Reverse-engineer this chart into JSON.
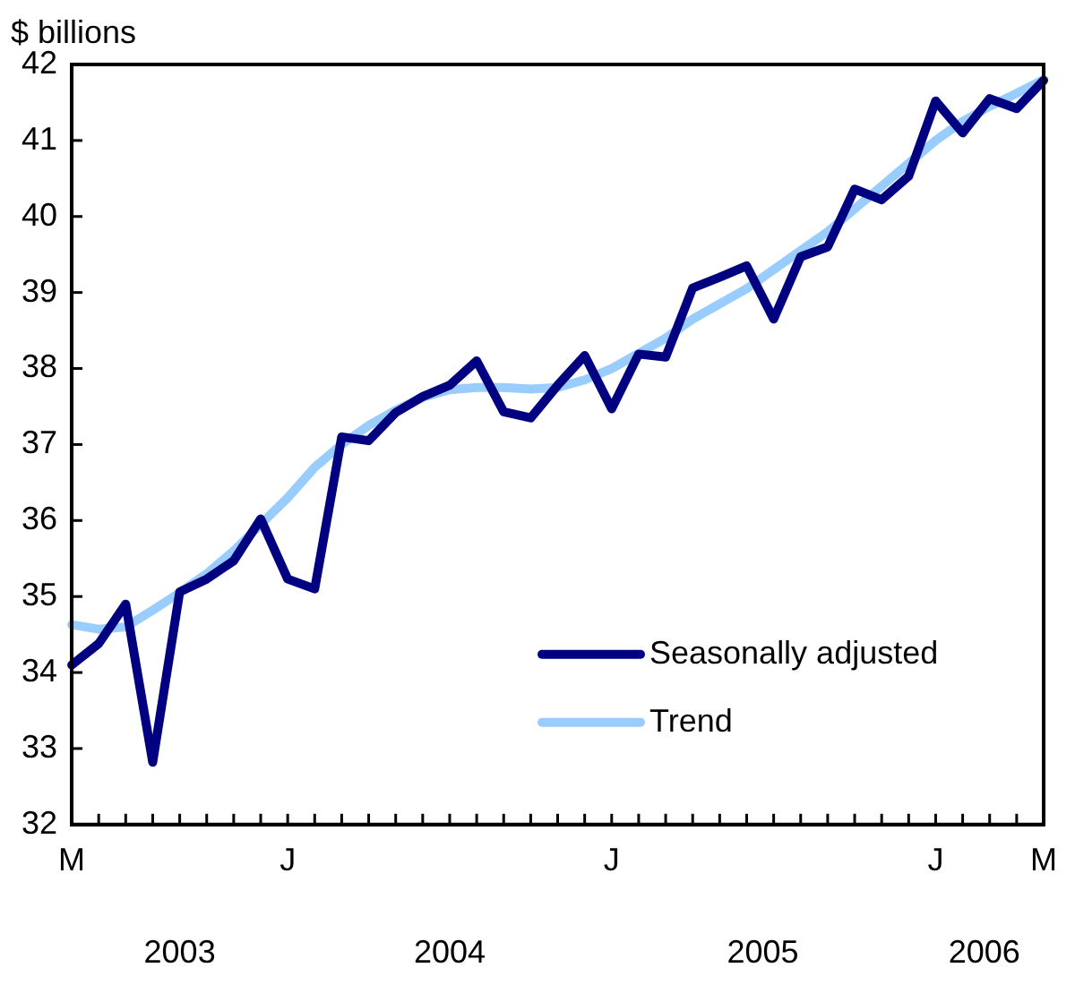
{
  "chart_data": {
    "type": "line",
    "ylabel": "$ billions",
    "categories": [
      "M",
      null,
      null,
      null,
      null,
      null,
      null,
      null,
      "J",
      null,
      null,
      null,
      null,
      null,
      null,
      null,
      null,
      null,
      null,
      null,
      "J",
      null,
      null,
      null,
      null,
      null,
      null,
      null,
      null,
      null,
      null,
      null,
      "J",
      null,
      null,
      null,
      "M"
    ],
    "series": [
      {
        "name": "Seasonally adjusted",
        "color": "#000080",
        "values": [
          34.1,
          34.38,
          34.9,
          32.82,
          35.06,
          35.23,
          35.47,
          36.02,
          35.23,
          35.1,
          37.1,
          37.05,
          37.42,
          37.63,
          37.78,
          38.1,
          37.43,
          37.35,
          37.78,
          38.17,
          37.47,
          38.19,
          38.15,
          39.06,
          39.2,
          39.35,
          38.65,
          39.47,
          39.6,
          40.36,
          40.22,
          40.53,
          41.52,
          41.1,
          41.55,
          41.42,
          41.79
        ]
      },
      {
        "name": "Trend",
        "color": "#99ccff",
        "values": [
          34.63,
          34.57,
          34.6,
          34.82,
          35.05,
          35.3,
          35.6,
          35.95,
          36.3,
          36.7,
          37.0,
          37.25,
          37.45,
          37.62,
          37.72,
          37.75,
          37.75,
          37.73,
          37.75,
          37.85,
          38.0,
          38.2,
          38.4,
          38.65,
          38.85,
          39.05,
          39.3,
          39.55,
          39.8,
          40.1,
          40.4,
          40.7,
          41.0,
          41.25,
          41.45,
          41.62,
          41.8
        ]
      }
    ],
    "ylim": [
      32,
      42
    ],
    "yticks": [
      32,
      33,
      34,
      35,
      36,
      37,
      38,
      39,
      40,
      41,
      42
    ],
    "annotations": [
      "2003",
      "2004",
      "2005",
      "2006"
    ],
    "grid": false,
    "legend": "bottom right",
    "marker": "none",
    "line_style": "solid"
  }
}
